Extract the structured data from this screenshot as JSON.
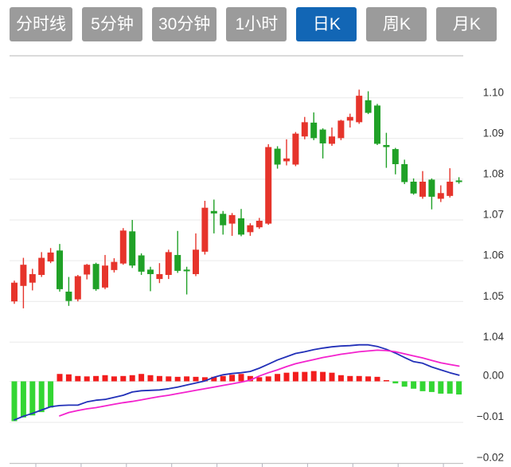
{
  "toolbar": {
    "tabs": [
      {
        "label": "分时线",
        "active": false
      },
      {
        "label": "5分钟",
        "active": false
      },
      {
        "label": "30分钟",
        "active": false
      },
      {
        "label": "1小时",
        "active": false
      },
      {
        "label": "日K",
        "active": true
      },
      {
        "label": "周K",
        "active": false
      },
      {
        "label": "月K",
        "active": false
      }
    ],
    "active_bg": "#1266b5",
    "inactive_bg": "#9b9b9b",
    "text_color": "#ffffff"
  },
  "colors": {
    "candle_up": "#e6342b",
    "candle_down": "#20a127",
    "hist_up": "#f21d1d",
    "hist_down": "#33d633",
    "dif_line": "#2230b8",
    "dea_line": "#f322cd",
    "gridline": "#e9e9e9",
    "axis_border": "#c4c4c4",
    "tick_mark": "#b5b5c0",
    "axis_label": "#333333",
    "background": "#ffffff"
  },
  "chart_data": {
    "type": "candlestick+macd",
    "title": "",
    "interval": "日K",
    "price_axis": {
      "side": "right",
      "ticks": [
        1.1,
        1.09,
        1.08,
        1.07,
        1.06,
        1.05,
        1.04
      ],
      "labels": [
        "1.10",
        "1.09",
        "1.08",
        "1.07",
        "1.06",
        "1.05",
        "1.04"
      ]
    },
    "macd_axis": {
      "side": "right",
      "ticks": [
        0.0,
        -0.01,
        -0.02
      ],
      "labels": [
        "0.00",
        "−0.01",
        "−0.02"
      ]
    },
    "x_axis": {
      "labels": [],
      "unlabeled_tick_count": 10
    },
    "candles_ohlc": [
      [
        1.05,
        1.0551,
        1.0494,
        1.0546
      ],
      [
        1.0538,
        1.0607,
        1.0483,
        1.059
      ],
      [
        1.0546,
        1.058,
        1.0527,
        1.0567
      ],
      [
        1.0565,
        1.0621,
        1.056,
        1.0607
      ],
      [
        1.0598,
        1.0631,
        1.0594,
        1.062
      ],
      [
        1.0625,
        1.0641,
        1.0524,
        1.053
      ],
      [
        1.0524,
        1.056,
        1.0489,
        1.0501
      ],
      [
        1.0505,
        1.0565,
        1.05,
        1.0562
      ],
      [
        1.0566,
        1.0592,
        1.0554,
        1.059
      ],
      [
        1.0592,
        1.0595,
        1.0526,
        1.053
      ],
      [
        1.0534,
        1.0614,
        1.053,
        1.0588
      ],
      [
        1.0577,
        1.0606,
        1.0571,
        1.0597
      ],
      [
        1.0593,
        1.068,
        1.059,
        1.0674
      ],
      [
        1.0672,
        1.07,
        1.0582,
        1.0588
      ],
      [
        1.0613,
        1.0618,
        1.0565,
        1.0573
      ],
      [
        1.0578,
        1.0585,
        1.0525,
        1.0567
      ],
      [
        1.0555,
        1.0594,
        1.0545,
        1.0567
      ],
      [
        1.0565,
        1.0627,
        1.0555,
        1.0621
      ],
      [
        1.0614,
        1.0673,
        1.057,
        1.0575
      ],
      [
        1.0578,
        1.0585,
        1.0517,
        1.0574
      ],
      [
        1.0567,
        1.0667,
        1.0562,
        1.0627
      ],
      [
        1.0622,
        1.0747,
        1.0615,
        1.073
      ],
      [
        1.0722,
        1.075,
        1.0667,
        1.0716
      ],
      [
        1.0715,
        1.0722,
        1.0664,
        1.0687
      ],
      [
        1.0691,
        1.0717,
        1.0661,
        1.0712
      ],
      [
        1.0704,
        1.0727,
        1.066,
        1.0664
      ],
      [
        1.067,
        1.0692,
        1.0661,
        1.0687
      ],
      [
        1.0682,
        1.0705,
        1.0678,
        1.0698
      ],
      [
        1.0691,
        1.0886,
        1.0688,
        1.0879
      ],
      [
        1.0875,
        1.0881,
        1.0826,
        1.0836
      ],
      [
        1.0844,
        1.0898,
        1.0834,
        1.0851
      ],
      [
        1.0836,
        1.0916,
        1.0832,
        1.0912
      ],
      [
        1.0905,
        1.0953,
        1.0898,
        1.094
      ],
      [
        1.0939,
        1.0964,
        1.0896,
        1.0901
      ],
      [
        1.0922,
        1.0925,
        1.0851,
        1.0888
      ],
      [
        1.0887,
        1.0927,
        1.0882,
        1.0905
      ],
      [
        1.0901,
        1.0946,
        1.0896,
        1.0944
      ],
      [
        1.0944,
        1.0961,
        1.0927,
        1.0953
      ],
      [
        1.094,
        1.102,
        1.0936,
        1.1005
      ],
      [
        1.0994,
        1.1016,
        1.096,
        1.0963
      ],
      [
        1.0981,
        1.0985,
        1.0884,
        1.0887
      ],
      [
        1.0884,
        1.0914,
        1.0828,
        1.0879
      ],
      [
        1.0874,
        1.0877,
        1.0812,
        1.0837
      ],
      [
        1.0837,
        1.0848,
        1.0788,
        1.0793
      ],
      [
        1.0794,
        1.0802,
        1.0762,
        1.0765
      ],
      [
        1.0757,
        1.082,
        1.0752,
        1.0794
      ],
      [
        1.0799,
        1.0802,
        1.0726,
        1.0757
      ],
      [
        1.0752,
        1.0785,
        1.0744,
        1.0766
      ],
      [
        1.0759,
        1.0827,
        1.0755,
        1.0794
      ],
      [
        1.0797,
        1.0805,
        1.0789,
        1.0793
      ]
    ],
    "macd_histogram": [
      -0.0097,
      -0.0088,
      -0.0083,
      -0.0075,
      -0.0064,
      0.0018,
      0.0017,
      0.0013,
      0.0012,
      0.0013,
      0.0015,
      0.0012,
      0.0013,
      0.0015,
      0.0018,
      0.0015,
      0.0013,
      0.0012,
      0.0011,
      0.0012,
      0.0011,
      0.001,
      0.0011,
      0.0013,
      0.0016,
      0.0018,
      0.0013,
      0.001,
      0.0012,
      0.0018,
      0.0021,
      0.0023,
      0.0023,
      0.0025,
      0.0023,
      0.0021,
      0.0015,
      0.0013,
      0.0013,
      0.0012,
      0.0011,
      0.0003,
      -0.0005,
      -0.0013,
      -0.0018,
      -0.0024,
      -0.0026,
      -0.003,
      -0.003,
      -0.0032
    ],
    "dif_line": [
      -0.0094,
      -0.0085,
      -0.0078,
      -0.007,
      -0.0062,
      -0.0059,
      -0.0058,
      -0.0058,
      -0.005,
      -0.0046,
      -0.0044,
      -0.0039,
      -0.0034,
      -0.0026,
      -0.0023,
      -0.0022,
      -0.0021,
      -0.0018,
      -0.0014,
      -0.0009,
      -0.0004,
      0.0001,
      0.001,
      0.0016,
      0.0019,
      0.0021,
      0.0024,
      0.0032,
      0.0042,
      0.0052,
      0.006,
      0.0068,
      0.0072,
      0.0077,
      0.0081,
      0.0084,
      0.0086,
      0.0087,
      0.0089,
      0.0089,
      0.0085,
      0.0078,
      0.0069,
      0.0058,
      0.0048,
      0.0044,
      0.0035,
      0.0028,
      0.0021,
      0.0015
    ],
    "dea_line": [
      null,
      null,
      null,
      null,
      null,
      -0.0084,
      -0.0076,
      -0.0071,
      -0.0067,
      -0.0064,
      -0.006,
      -0.0056,
      -0.0052,
      -0.0049,
      -0.0045,
      -0.0041,
      -0.0037,
      -0.0034,
      -0.003,
      -0.0026,
      -0.0022,
      -0.0018,
      -0.0014,
      -0.001,
      -0.0006,
      -0.0002,
      0.0003,
      0.0013,
      0.0021,
      0.0028,
      0.0036,
      0.0043,
      0.0048,
      0.0053,
      0.0058,
      0.0062,
      0.0066,
      0.0069,
      0.0072,
      0.0074,
      0.0076,
      0.0075,
      0.0072,
      0.0067,
      0.0062,
      0.0057,
      0.0051,
      0.0045,
      0.0041,
      0.0037
    ]
  }
}
